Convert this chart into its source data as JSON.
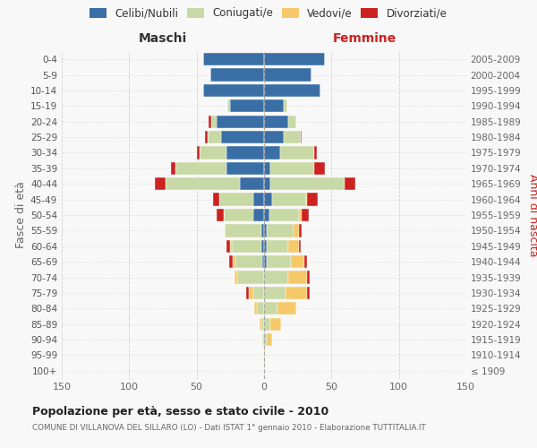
{
  "age_groups": [
    "100+",
    "95-99",
    "90-94",
    "85-89",
    "80-84",
    "75-79",
    "70-74",
    "65-69",
    "60-64",
    "55-59",
    "50-54",
    "45-49",
    "40-44",
    "35-39",
    "30-34",
    "25-29",
    "20-24",
    "15-19",
    "10-14",
    "5-9",
    "0-4"
  ],
  "birth_years": [
    "≤ 1909",
    "1910-1914",
    "1915-1919",
    "1920-1924",
    "1925-1929",
    "1930-1934",
    "1935-1939",
    "1940-1944",
    "1945-1949",
    "1950-1954",
    "1955-1959",
    "1960-1964",
    "1965-1969",
    "1970-1974",
    "1975-1979",
    "1980-1984",
    "1985-1989",
    "1990-1994",
    "1995-1999",
    "2000-2004",
    "2005-2009"
  ],
  "maschi_celibe": [
    0,
    0,
    0,
    0,
    0,
    0,
    0,
    1,
    2,
    2,
    8,
    8,
    18,
    28,
    28,
    32,
    35,
    25,
    45,
    40,
    45
  ],
  "maschi_coniugato": [
    0,
    0,
    1,
    2,
    5,
    8,
    20,
    20,
    22,
    27,
    22,
    25,
    55,
    38,
    20,
    10,
    4,
    2,
    0,
    0,
    0
  ],
  "maschi_vedovo": [
    0,
    0,
    0,
    1,
    2,
    3,
    2,
    2,
    1,
    0,
    0,
    0,
    0,
    0,
    0,
    0,
    0,
    0,
    0,
    0,
    0
  ],
  "maschi_divorziato": [
    0,
    0,
    0,
    0,
    0,
    2,
    0,
    3,
    3,
    0,
    5,
    5,
    8,
    3,
    2,
    2,
    2,
    0,
    0,
    0,
    0
  ],
  "femmine_nubile": [
    0,
    0,
    0,
    0,
    0,
    0,
    0,
    2,
    2,
    2,
    4,
    6,
    5,
    5,
    12,
    15,
    18,
    15,
    42,
    35,
    45
  ],
  "femmine_coniugata": [
    0,
    0,
    2,
    5,
    10,
    16,
    18,
    18,
    16,
    20,
    22,
    25,
    55,
    32,
    25,
    12,
    6,
    2,
    0,
    0,
    0
  ],
  "femmine_vedova": [
    0,
    1,
    4,
    8,
    14,
    16,
    14,
    10,
    8,
    4,
    2,
    1,
    0,
    0,
    0,
    0,
    0,
    0,
    0,
    0,
    0
  ],
  "femmine_divorziata": [
    0,
    0,
    0,
    0,
    0,
    2,
    2,
    2,
    1,
    2,
    5,
    8,
    8,
    8,
    2,
    1,
    0,
    0,
    0,
    0,
    0
  ],
  "color_celibe": "#3a6fa5",
  "color_coniugato": "#c8d9a5",
  "color_vedovo": "#f5c96a",
  "color_divorziato": "#cc2222",
  "xlim": 150,
  "title": "Popolazione per età, sesso e stato civile - 2010",
  "subtitle": "COMUNE DI VILLANOVA DEL SILLARO (LO) - Dati ISTAT 1° gennaio 2010 - Elaborazione TUTTITALIA.IT",
  "ylabel_left": "Fasce di età",
  "ylabel_right": "Anni di nascita",
  "label_maschi": "Maschi",
  "label_femmine": "Femmine",
  "bg_color": "#f8f8f8",
  "grid_color": "#cccccc",
  "xticks": [
    -150,
    -100,
    -50,
    0,
    50,
    100,
    150
  ]
}
